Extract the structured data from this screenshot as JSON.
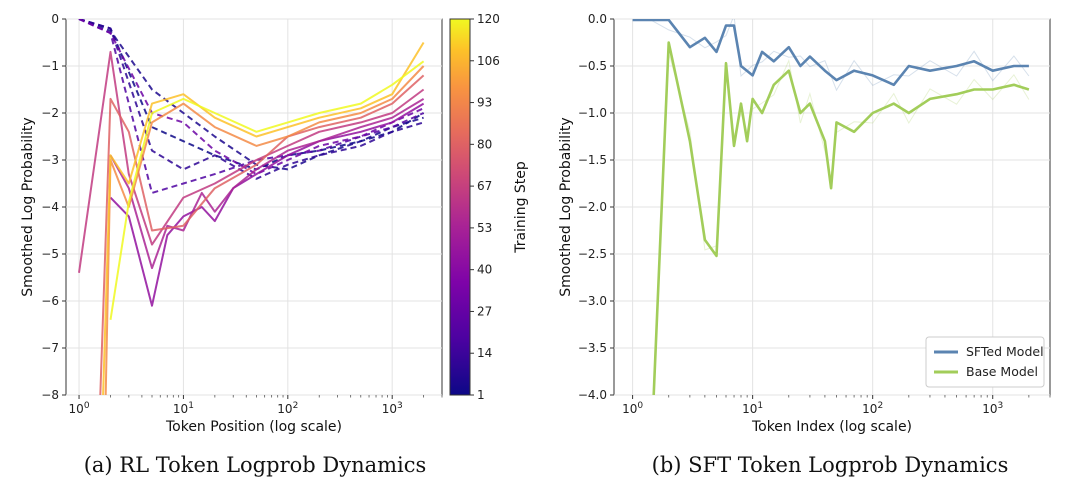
{
  "chart_data": [
    {
      "type": "line",
      "caption": "(a)  RL Token Logprob Dynamics",
      "xlabel": "Token Position (log scale)",
      "ylabel": "Smoothed Log Probability",
      "x_scale": "log",
      "xlim": [
        0.75,
        3000
      ],
      "ylim": [
        -8,
        0
      ],
      "x_ticks": [
        "10^0",
        "10^1",
        "10^2",
        "10^3"
      ],
      "y_ticks": [
        "0",
        "−1",
        "−2",
        "−3",
        "−4",
        "−5",
        "−6",
        "−7",
        "−8"
      ],
      "grid": true,
      "colorbar": {
        "label": "Training Step",
        "colormap": "plasma",
        "ticks": [
          "120",
          "106",
          "93",
          "80",
          "67",
          "53",
          "40",
          "27",
          "14",
          "1"
        ]
      },
      "line_style_note": "early steps dashed, later steps solid",
      "series": [
        {
          "step": 1,
          "style": "dashed",
          "x": [
            1,
            2,
            5,
            10,
            20,
            50,
            100,
            200,
            500,
            1000,
            2000
          ],
          "y": [
            0,
            -0.2,
            -2.3,
            -2.6,
            -2.9,
            -3.2,
            -2.9,
            -2.8,
            -2.6,
            -2.4,
            -2.0
          ]
        },
        {
          "step": 5,
          "style": "dashed",
          "x": [
            1,
            2,
            5,
            10,
            20,
            50,
            100,
            200,
            500,
            1000,
            2000
          ],
          "y": [
            0,
            -0.25,
            -1.5,
            -2.0,
            -2.5,
            -3.1,
            -3.2,
            -2.9,
            -2.6,
            -2.3,
            -2.1
          ]
        },
        {
          "step": 10,
          "style": "dashed",
          "x": [
            1,
            2,
            5,
            10,
            20,
            50,
            100,
            200,
            500,
            1000,
            2000
          ],
          "y": [
            0,
            -0.2,
            -2.8,
            -3.2,
            -2.9,
            -3.4,
            -3.1,
            -2.9,
            -2.7,
            -2.4,
            -2.2
          ]
        },
        {
          "step": 20,
          "style": "dashed",
          "x": [
            1,
            2,
            5,
            10,
            20,
            50,
            100,
            200,
            500,
            1000,
            2000
          ],
          "y": [
            0,
            -0.3,
            -3.7,
            -3.5,
            -3.3,
            -3.0,
            -2.9,
            -2.8,
            -2.5,
            -2.3,
            -2.0
          ]
        },
        {
          "step": 30,
          "style": "dashed",
          "x": [
            1,
            2,
            5,
            10,
            20,
            50,
            100,
            200,
            500,
            1000,
            2000
          ],
          "y": [
            0,
            -0.3,
            -2.0,
            -2.2,
            -2.8,
            -3.3,
            -3.0,
            -2.7,
            -2.5,
            -2.2,
            -1.9
          ]
        },
        {
          "step": 45,
          "style": "solid",
          "x": [
            2,
            3,
            5,
            7,
            10,
            15,
            20,
            30,
            50,
            100,
            200,
            500,
            1000,
            2000
          ],
          "y": [
            -3.8,
            -4.2,
            -6.1,
            -4.6,
            -4.2,
            -4.0,
            -4.3,
            -3.6,
            -3.3,
            -2.9,
            -2.6,
            -2.4,
            -2.2,
            -1.8
          ]
        },
        {
          "step": 55,
          "style": "solid",
          "x": [
            2,
            3,
            5,
            7,
            10,
            15,
            20,
            30,
            50,
            100,
            200,
            500,
            1000,
            2000
          ],
          "y": [
            -2.9,
            -3.6,
            -5.3,
            -4.4,
            -4.5,
            -3.7,
            -4.1,
            -3.6,
            -3.2,
            -2.8,
            -2.6,
            -2.3,
            -2.1,
            -1.7
          ]
        },
        {
          "step": 65,
          "style": "solid",
          "x": [
            1,
            2,
            3,
            5,
            10,
            20,
            50,
            100,
            200,
            500,
            1000,
            2000
          ],
          "y": [
            -5.4,
            -0.7,
            -3.3,
            -4.8,
            -3.8,
            -3.5,
            -3.0,
            -2.7,
            -2.4,
            -2.2,
            -2.0,
            -1.5
          ]
        },
        {
          "step": 80,
          "style": "solid",
          "x": [
            1.6,
            2,
            3,
            5,
            10,
            20,
            50,
            100,
            200,
            500,
            1000,
            2000
          ],
          "y": [
            -8,
            -1.7,
            -2.4,
            -4.5,
            -4.4,
            -3.6,
            -3.1,
            -2.5,
            -2.3,
            -2.1,
            -1.8,
            -1.2
          ]
        },
        {
          "step": 95,
          "style": "solid",
          "x": [
            1.8,
            2,
            3,
            5,
            10,
            20,
            50,
            100,
            200,
            500,
            1000,
            2000
          ],
          "y": [
            -8,
            -3.0,
            -4.0,
            -2.2,
            -1.8,
            -2.3,
            -2.7,
            -2.5,
            -2.2,
            -2.0,
            -1.7,
            -1.0
          ]
        },
        {
          "step": 110,
          "style": "solid",
          "x": [
            1.7,
            2,
            3,
            5,
            10,
            20,
            50,
            100,
            200,
            500,
            1000,
            2000
          ],
          "y": [
            -8,
            -2.9,
            -3.5,
            -1.8,
            -1.6,
            -2.1,
            -2.5,
            -2.3,
            -2.1,
            -1.9,
            -1.6,
            -0.5
          ]
        },
        {
          "step": 120,
          "style": "solid",
          "x": [
            2,
            3,
            5,
            10,
            20,
            50,
            100,
            200,
            500,
            1000,
            2000
          ],
          "y": [
            -6.4,
            -3.9,
            -2.0,
            -1.7,
            -2.0,
            -2.4,
            -2.2,
            -2.0,
            -1.8,
            -1.4,
            -0.9
          ]
        }
      ]
    },
    {
      "type": "line",
      "caption": "(b)  SFT Token Logprob Dynamics",
      "xlabel": "Token Index (log scale)",
      "ylabel": "Smoothed Log Probability",
      "x_scale": "log",
      "xlim": [
        0.7,
        3000
      ],
      "ylim": [
        -4.0,
        0.0
      ],
      "x_ticks": [
        "10^0",
        "10^1",
        "10^2",
        "10^3"
      ],
      "y_ticks": [
        "0.0",
        "−0.5",
        "−1.0",
        "−1.5",
        "−2.0",
        "−2.5",
        "−3.0",
        "−3.5",
        "−4.0"
      ],
      "grid": true,
      "legend": {
        "position": "lower-right",
        "entries": [
          "SFTed Model",
          "Base Model"
        ]
      },
      "series": [
        {
          "name": "SFTed Model",
          "color": "#5b84b1",
          "x": [
            1,
            2,
            3,
            4,
            5,
            6,
            7,
            8,
            10,
            12,
            15,
            20,
            25,
            30,
            40,
            50,
            70,
            100,
            150,
            200,
            300,
            500,
            700,
            1000,
            1500,
            2000
          ],
          "y": [
            -0.01,
            -0.01,
            -0.3,
            -0.2,
            -0.35,
            -0.07,
            -0.07,
            -0.5,
            -0.6,
            -0.35,
            -0.45,
            -0.3,
            -0.5,
            -0.4,
            -0.55,
            -0.65,
            -0.55,
            -0.6,
            -0.7,
            -0.5,
            -0.55,
            -0.5,
            -0.45,
            -0.55,
            -0.5,
            -0.5
          ]
        },
        {
          "name": "Base Model",
          "color": "#a2cd5a",
          "x": [
            1.5,
            2,
            3,
            4,
            5,
            6,
            7,
            8,
            9,
            10,
            12,
            15,
            20,
            25,
            30,
            40,
            45,
            50,
            70,
            100,
            150,
            200,
            300,
            500,
            700,
            1000,
            1500,
            2000
          ],
          "y": [
            -4.0,
            -0.25,
            -1.3,
            -2.35,
            -2.52,
            -0.47,
            -1.35,
            -0.9,
            -1.3,
            -0.85,
            -1.0,
            -0.7,
            -0.55,
            -1.0,
            -0.9,
            -1.3,
            -1.8,
            -1.1,
            -1.2,
            -1.0,
            -0.9,
            -1.0,
            -0.85,
            -0.8,
            -0.75,
            -0.75,
            -0.7,
            -0.75
          ]
        }
      ]
    }
  ]
}
